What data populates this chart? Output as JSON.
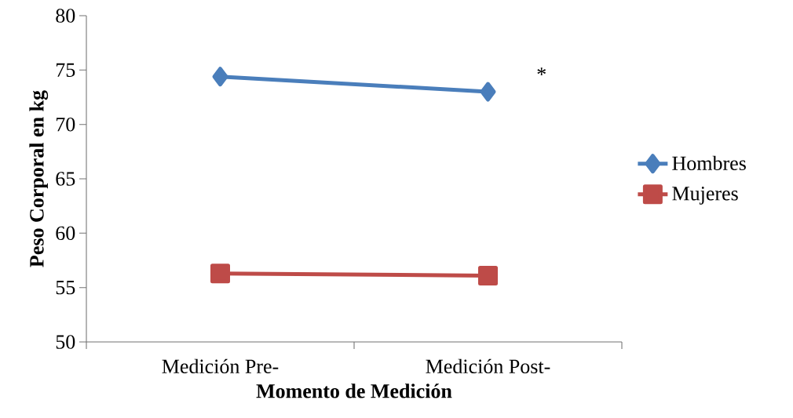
{
  "chart_data": {
    "type": "line",
    "xlabel": "Momento de Medición",
    "ylabel": "Peso Corporal en kg",
    "categories": [
      "Medición Pre-",
      "Medición Post-"
    ],
    "series": [
      {
        "name": "Hombres",
        "color": "#4a7ebb",
        "marker": "diamond",
        "values": [
          74.4,
          73.0
        ]
      },
      {
        "name": "Mujeres",
        "color": "#be4b48",
        "marker": "square",
        "values": [
          56.3,
          56.1
        ]
      }
    ],
    "ylim": [
      50,
      80
    ],
    "yticks": [
      50,
      55,
      60,
      65,
      70,
      75,
      80
    ],
    "grid": false,
    "legend": "right",
    "annotations": [
      "*"
    ]
  }
}
